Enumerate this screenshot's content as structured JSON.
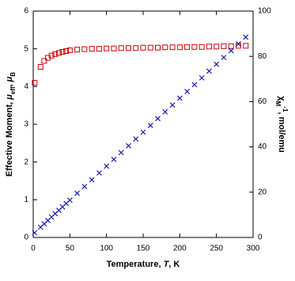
{
  "chart_data": {
    "type": "scatter",
    "xlabel": [
      {
        "text": "Temperature, "
      },
      {
        "text": "T",
        "italic": true
      },
      {
        "text": ", K"
      }
    ],
    "ylabel": [
      {
        "text": "Effective Moment, "
      },
      {
        "text": "μ",
        "italic": true
      },
      {
        "text": "eff",
        "baseline": "sub"
      },
      {
        "text": ", "
      },
      {
        "text": "μ",
        "italic": true
      },
      {
        "text": "B",
        "baseline": "sub"
      }
    ],
    "y2label": [
      {
        "text": "χ"
      },
      {
        "text": "M",
        "baseline": "sub"
      },
      {
        "text": "-1",
        "baseline": "super"
      },
      {
        "text": ", mol/emu"
      }
    ],
    "xlim": [
      0,
      300
    ],
    "xticks": [
      0,
      50,
      100,
      150,
      200,
      250,
      300
    ],
    "ylim": [
      0,
      6
    ],
    "yticks": [
      0,
      1,
      2,
      3,
      4,
      5,
      6
    ],
    "y2lim": [
      0,
      100
    ],
    "y2ticks": [
      0,
      20,
      40,
      60,
      80,
      100
    ],
    "series": [
      {
        "color": "#cc0000",
        "marker": "square",
        "axis": "y",
        "x": [
          2,
          10,
          15,
          20,
          25,
          30,
          35,
          40,
          45,
          50,
          60,
          70,
          80,
          90,
          100,
          110,
          120,
          130,
          140,
          150,
          160,
          170,
          180,
          190,
          200,
          210,
          220,
          230,
          240,
          250,
          260,
          270,
          280,
          290
        ],
        "values": [
          4.1,
          4.52,
          4.68,
          4.76,
          4.82,
          4.86,
          4.89,
          4.92,
          4.94,
          4.96,
          4.98,
          4.99,
          5.0,
          5.0,
          5.01,
          5.01,
          5.02,
          5.02,
          5.02,
          5.03,
          5.03,
          5.03,
          5.04,
          5.04,
          5.04,
          5.05,
          5.05,
          5.05,
          5.06,
          5.06,
          5.07,
          5.07,
          5.08,
          5.08
        ]
      },
      {
        "color": "#1a1aaa",
        "marker": "cross",
        "axis": "y2",
        "x": [
          2,
          10,
          15,
          20,
          25,
          30,
          35,
          40,
          45,
          50,
          60,
          70,
          80,
          90,
          100,
          110,
          120,
          130,
          140,
          150,
          160,
          170,
          180,
          190,
          200,
          210,
          220,
          230,
          240,
          250,
          260,
          270,
          280,
          290
        ],
        "values": [
          2.1,
          4.5,
          6,
          7.5,
          9,
          10.5,
          12,
          13.5,
          15,
          16.5,
          19.5,
          22.5,
          25.5,
          28.5,
          31.5,
          34.5,
          37.5,
          40.5,
          43.5,
          46.5,
          49.5,
          52.5,
          55.5,
          58.5,
          61.5,
          64.5,
          67.5,
          70.5,
          73.5,
          76.5,
          79.5,
          82.5,
          85.5,
          88.5
        ]
      }
    ]
  }
}
